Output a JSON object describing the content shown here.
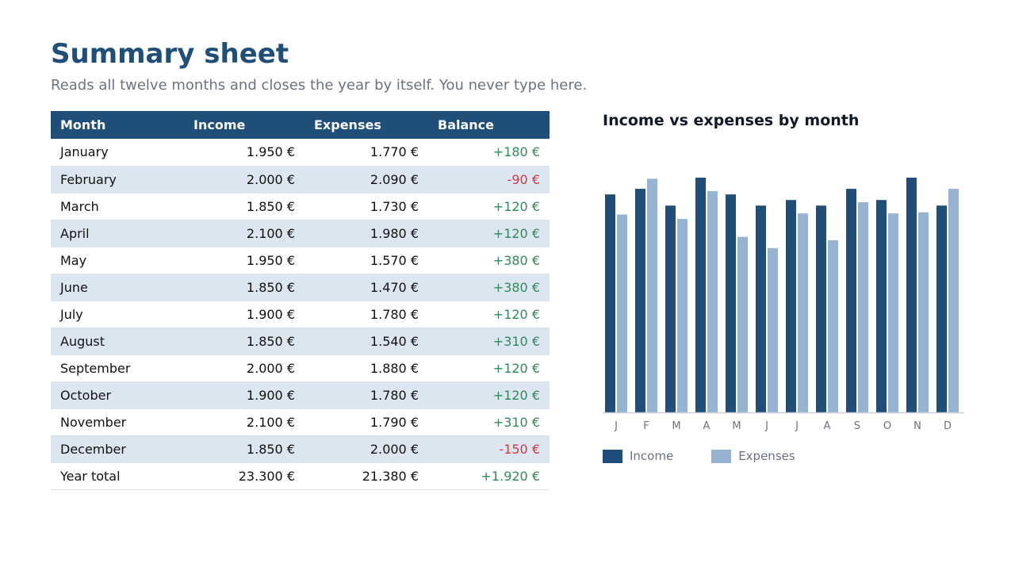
{
  "title": "Summary sheet",
  "subtitle": "Reads all twelve months and closes the year by itself. You never type here.",
  "colors": {
    "header_bg": "#1f4e79",
    "income": "#1f4e79",
    "expenses": "#97b3d2",
    "positive": "#2e8b57",
    "negative": "#d9363e",
    "stripe": "#dce6f1"
  },
  "table": {
    "headers": {
      "month": "Month",
      "income": "Income",
      "expenses": "Expenses",
      "balance": "Balance"
    },
    "rows": [
      {
        "month": "January",
        "income": "1.950 €",
        "expenses": "1.770 €",
        "balance": "+180 €"
      },
      {
        "month": "February",
        "income": "2.000 €",
        "expenses": "2.090 €",
        "balance": "-90 €"
      },
      {
        "month": "March",
        "income": "1.850 €",
        "expenses": "1.730 €",
        "balance": "+120 €"
      },
      {
        "month": "April",
        "income": "2.100 €",
        "expenses": "1.980 €",
        "balance": "+120 €"
      },
      {
        "month": "May",
        "income": "1.950 €",
        "expenses": "1.570 €",
        "balance": "+380 €"
      },
      {
        "month": "June",
        "income": "1.850 €",
        "expenses": "1.470 €",
        "balance": "+380 €"
      },
      {
        "month": "July",
        "income": "1.900 €",
        "expenses": "1.780 €",
        "balance": "+120 €"
      },
      {
        "month": "August",
        "income": "1.850 €",
        "expenses": "1.540 €",
        "balance": "+310 €"
      },
      {
        "month": "September",
        "income": "2.000 €",
        "expenses": "1.880 €",
        "balance": "+120 €"
      },
      {
        "month": "October",
        "income": "1.900 €",
        "expenses": "1.780 €",
        "balance": "+120 €"
      },
      {
        "month": "November",
        "income": "2.100 €",
        "expenses": "1.790 €",
        "balance": "+310 €"
      },
      {
        "month": "December",
        "income": "1.850 €",
        "expenses": "2.000 €",
        "balance": "-150 €"
      },
      {
        "month": "Year total",
        "income": "23.300 €",
        "expenses": "21.380 €",
        "balance": "+1.920 €"
      }
    ]
  },
  "chart_data": {
    "type": "bar",
    "title": "Income vs expenses by month",
    "categories": [
      "J",
      "F",
      "M",
      "A",
      "M",
      "J",
      "J",
      "A",
      "S",
      "O",
      "N",
      "D"
    ],
    "series": [
      {
        "name": "Income",
        "values": [
          1950,
          2000,
          1850,
          2100,
          1950,
          1850,
          1900,
          1850,
          2000,
          1900,
          2100,
          1850
        ]
      },
      {
        "name": "Expenses",
        "values": [
          1770,
          2090,
          1730,
          1980,
          1570,
          1470,
          1780,
          1540,
          1880,
          1780,
          1790,
          2000
        ]
      }
    ],
    "xlabel": "",
    "ylabel": "",
    "ylim": [
      0,
      2100
    ],
    "grid": false,
    "legend": "bottom-left"
  }
}
